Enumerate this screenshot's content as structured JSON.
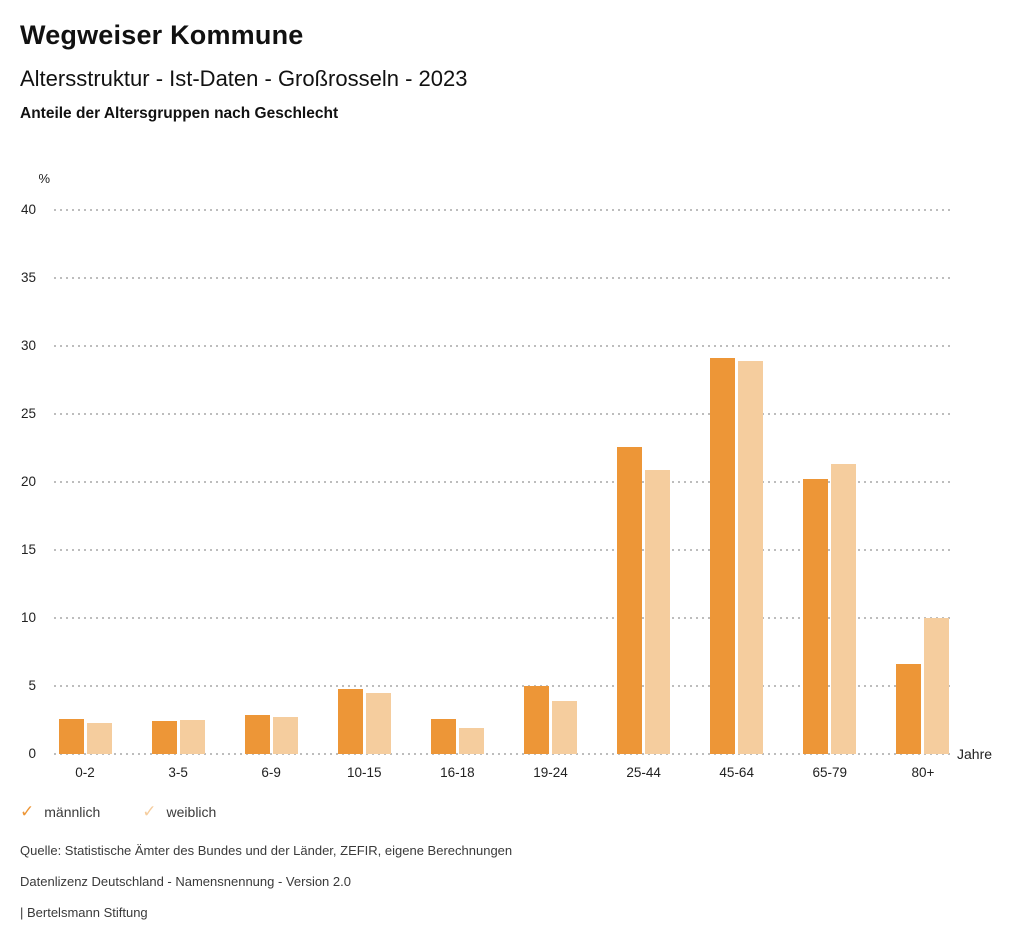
{
  "header": {
    "title": "Wegweiser Kommune",
    "subtitle": "Altersstruktur - Ist-Daten - Großrosseln - 2023",
    "chart_label": "Anteile der Altersgruppen nach Geschlecht"
  },
  "chart_data": {
    "type": "bar",
    "categories": [
      "0-2",
      "3-5",
      "6-9",
      "10-15",
      "16-18",
      "19-24",
      "25-44",
      "45-64",
      "65-79",
      "80+"
    ],
    "series": [
      {
        "name": "männlich",
        "color": "#ED9637",
        "values": [
          2.6,
          2.4,
          2.9,
          4.8,
          2.6,
          5.0,
          22.6,
          29.1,
          20.2,
          6.6
        ]
      },
      {
        "name": "weiblich",
        "color": "#F5CD9E",
        "values": [
          2.3,
          2.5,
          2.7,
          4.5,
          1.9,
          3.9,
          20.9,
          28.9,
          21.3,
          10.0
        ]
      }
    ],
    "title": "Anteile der Altersgruppen nach Geschlecht",
    "xlabel": "Jahre",
    "ylabel": "%",
    "ylim": [
      0,
      40
    ],
    "yticks": [
      0,
      5,
      10,
      15,
      20,
      25,
      30,
      35,
      40
    ],
    "grid": "horizontal dotted",
    "legend_position": "bottom-left"
  },
  "legend": {
    "items": [
      {
        "label": "männlich",
        "color": "#ED9637",
        "icon": "check-icon"
      },
      {
        "label": "weiblich",
        "color": "#F5CD9E",
        "icon": "check-icon"
      }
    ]
  },
  "footer": {
    "source": "Quelle: Statistische Ämter des Bundes und der Länder, ZEFIR, eigene Berechnungen",
    "license": "Datenlizenz Deutschland - Namensnennung - Version 2.0",
    "attribution": "| Bertelsmann Stiftung"
  }
}
